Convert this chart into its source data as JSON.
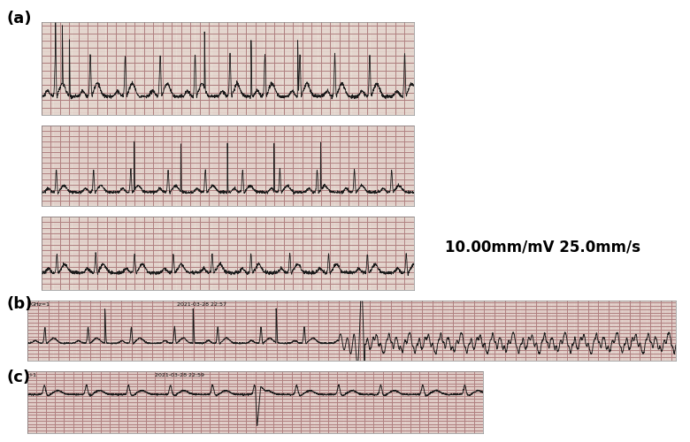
{
  "panel_a_label": "(a)",
  "panel_b_label": "(b)",
  "panel_c_label": "(c)",
  "calibration_text": "10.00mm/mV 25.0mm/s",
  "bg_color": "#ffffff",
  "ecg_color": "#1a1a1a",
  "label_fontsize": 13,
  "calib_fontsize": 12,
  "grid_major_color": "#b08080",
  "grid_minor_color": "#d9b8b8",
  "panel_bg": "#ede8dc"
}
